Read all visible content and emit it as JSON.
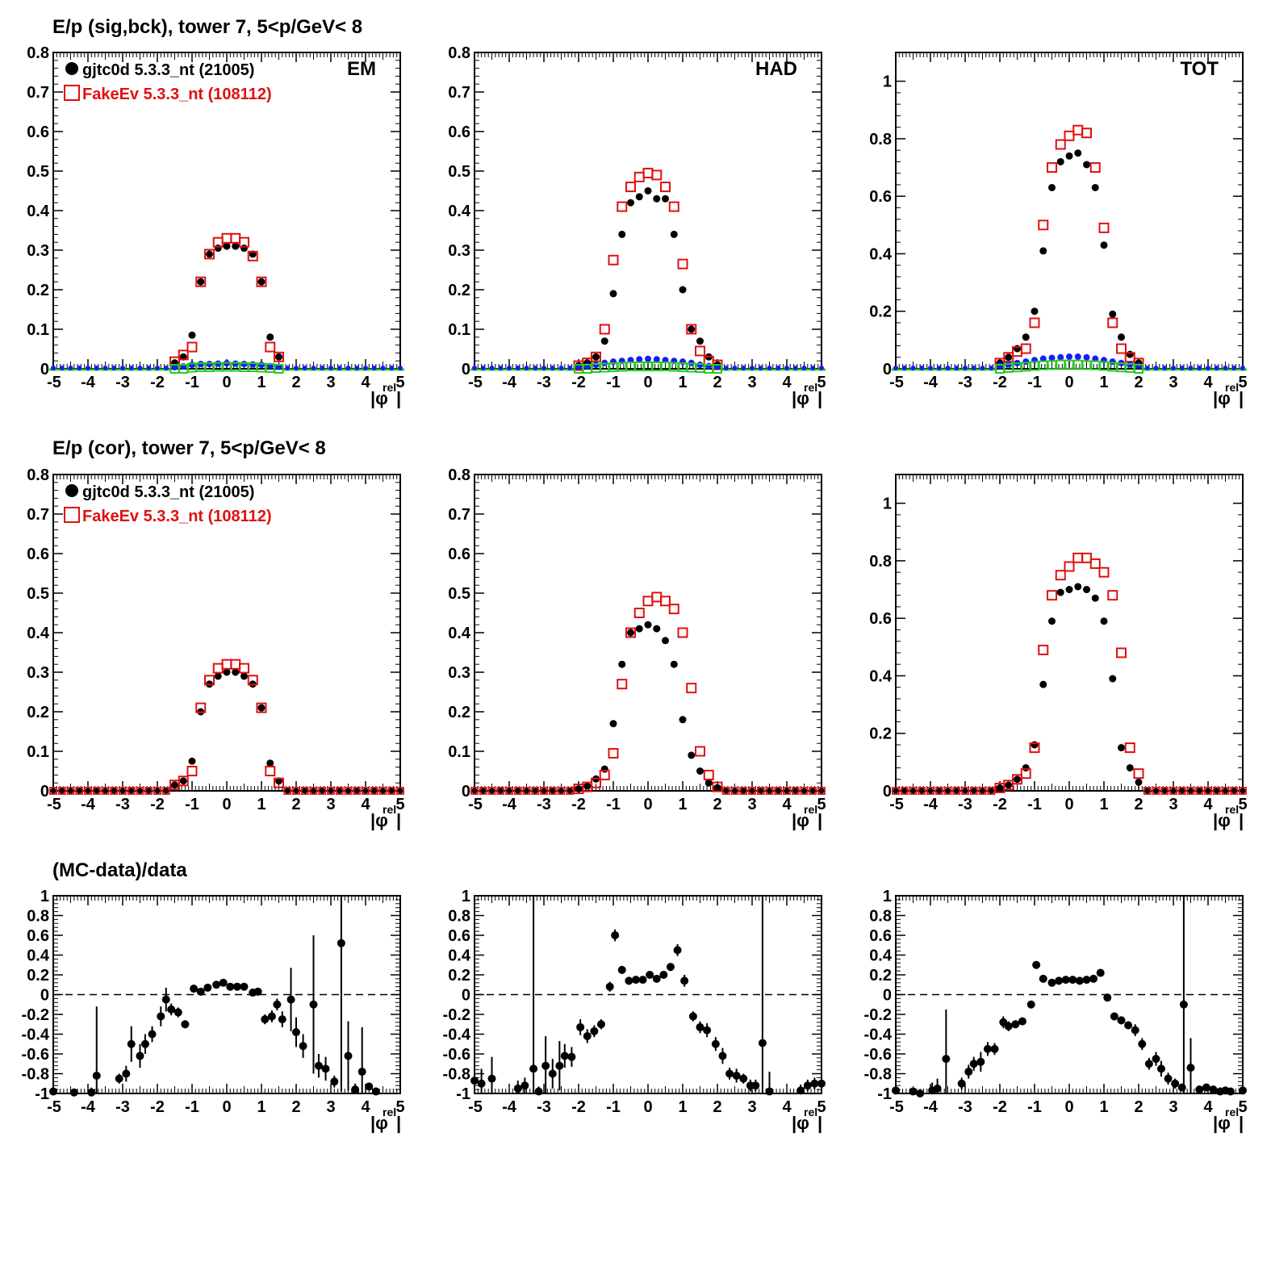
{
  "titles": {
    "row1": "E/p (sig,bck), tower 7,  5<p/GeV< 8",
    "row2": "E/p (cor), tower 7,  5<p/GeV< 8",
    "row3": "(MC-data)/data"
  },
  "legend": {
    "data_label": "gjtc0d 5.3.3_nt (21005)",
    "mc_label": "FakeEv 5.3.3_nt (108112)"
  },
  "colors": {
    "data": "#000000",
    "mc": "#e01010",
    "bck_data": "#1a1aff",
    "bck_mc": "#22cc22"
  },
  "xaxis": {
    "label_main": "|φ",
    "label_sup": "rel",
    "label_end": "|",
    "range": [
      -5,
      5
    ],
    "tick_labels": [
      "-5",
      "-4",
      "-3",
      "-2",
      "-1",
      "0",
      "1",
      "2",
      "3",
      "4",
      "5"
    ]
  },
  "chart_data": [
    {
      "id": "r1c1",
      "type": "scatter",
      "panel_label": "EM",
      "show_legend": true,
      "ylim": [
        0,
        0.8
      ],
      "yticks": [
        0,
        0.1,
        0.2,
        0.3,
        0.4,
        0.5,
        0.6,
        0.7,
        0.8
      ],
      "ytick_labels": [
        "0",
        "0.1",
        "0.2",
        "0.3",
        "0.4",
        "0.5",
        "0.6",
        "0.7",
        "0.8"
      ],
      "x": [
        -1.5,
        -1.25,
        -1.0,
        -0.75,
        -0.5,
        -0.25,
        0,
        0.25,
        0.5,
        0.75,
        1.0,
        1.25,
        1.5
      ],
      "series": [
        {
          "name": "gjtc0d 5.3.3_nt (21005)",
          "marker": "dot",
          "values": [
            0.015,
            0.03,
            0.085,
            0.22,
            0.29,
            0.305,
            0.31,
            0.31,
            0.305,
            0.29,
            0.22,
            0.08,
            0.03
          ]
        },
        {
          "name": "FakeEv 5.3.3_nt (108112)",
          "marker": "square",
          "values": [
            0.018,
            0.035,
            0.055,
            0.22,
            0.29,
            0.32,
            0.33,
            0.33,
            0.32,
            0.285,
            0.22,
            0.055,
            0.03
          ]
        },
        {
          "name": "bck data",
          "marker": "dot-small",
          "values": [
            0.004,
            0.006,
            0.01,
            0.012,
            0.012,
            0.013,
            0.014,
            0.013,
            0.012,
            0.011,
            0.01,
            0.007,
            0.005
          ]
        },
        {
          "name": "bck mc",
          "marker": "square-small",
          "values": [
            0.0,
            0.0,
            0.003,
            0.004,
            0.004,
            0.005,
            0.005,
            0.005,
            0.004,
            0.004,
            0.003,
            0.002,
            0.0
          ]
        }
      ]
    },
    {
      "id": "r1c2",
      "type": "scatter",
      "panel_label": "HAD",
      "show_legend": false,
      "ylim": [
        0,
        0.8
      ],
      "yticks": [
        0,
        0.1,
        0.2,
        0.3,
        0.4,
        0.5,
        0.6,
        0.7,
        0.8
      ],
      "ytick_labels": [
        "0",
        "0.1",
        "0.2",
        "0.3",
        "0.4",
        "0.5",
        "0.6",
        "0.7",
        "0.8"
      ],
      "x": [
        -2.0,
        -1.75,
        -1.5,
        -1.25,
        -1.0,
        -0.75,
        -0.5,
        -0.25,
        0,
        0.25,
        0.5,
        0.75,
        1.0,
        1.25,
        1.5,
        1.75,
        2.0
      ],
      "series": [
        {
          "name": "gjtc0d 5.3.3_nt (21005)",
          "marker": "dot",
          "values": [
            0.008,
            0.015,
            0.03,
            0.07,
            0.19,
            0.34,
            0.42,
            0.435,
            0.45,
            0.43,
            0.43,
            0.34,
            0.2,
            0.1,
            0.07,
            0.03,
            0.01
          ]
        },
        {
          "name": "FakeEv 5.3.3_nt (108112)",
          "marker": "square",
          "values": [
            0.008,
            0.015,
            0.03,
            0.1,
            0.275,
            0.41,
            0.46,
            0.485,
            0.495,
            0.49,
            0.46,
            0.41,
            0.265,
            0.1,
            0.045,
            0.02,
            0.01
          ]
        },
        {
          "name": "bck data",
          "marker": "dot-small",
          "values": [
            0.005,
            0.007,
            0.01,
            0.015,
            0.018,
            0.02,
            0.022,
            0.024,
            0.025,
            0.024,
            0.022,
            0.02,
            0.018,
            0.015,
            0.01,
            0.007,
            0.005
          ]
        },
        {
          "name": "bck mc",
          "marker": "square-small",
          "values": [
            0.0,
            0.0,
            0.002,
            0.003,
            0.004,
            0.005,
            0.006,
            0.006,
            0.006,
            0.006,
            0.006,
            0.005,
            0.004,
            0.003,
            0.002,
            0.0,
            0.0
          ]
        }
      ]
    },
    {
      "id": "r1c3",
      "type": "scatter",
      "panel_label": "TOT",
      "show_legend": false,
      "ylim": [
        0,
        1.1
      ],
      "yticks": [
        0,
        0.2,
        0.4,
        0.6,
        0.8,
        1.0
      ],
      "ytick_labels": [
        "0",
        "0.2",
        "0.4",
        "0.6",
        "0.8",
        "1"
      ],
      "x": [
        -2.0,
        -1.75,
        -1.5,
        -1.25,
        -1.0,
        -0.75,
        -0.5,
        -0.25,
        0,
        0.25,
        0.5,
        0.75,
        1.0,
        1.25,
        1.5,
        1.75,
        2.0
      ],
      "series": [
        {
          "name": "gjtc0d 5.3.3_nt (21005)",
          "marker": "dot",
          "values": [
            0.02,
            0.04,
            0.07,
            0.11,
            0.2,
            0.41,
            0.63,
            0.72,
            0.74,
            0.75,
            0.71,
            0.63,
            0.43,
            0.19,
            0.11,
            0.05,
            0.02
          ]
        },
        {
          "name": "FakeEv 5.3.3_nt (108112)",
          "marker": "square",
          "values": [
            0.02,
            0.04,
            0.06,
            0.07,
            0.16,
            0.5,
            0.7,
            0.78,
            0.81,
            0.83,
            0.82,
            0.7,
            0.49,
            0.16,
            0.07,
            0.04,
            0.02
          ]
        },
        {
          "name": "bck data",
          "marker": "dot-small",
          "values": [
            0.01,
            0.015,
            0.02,
            0.025,
            0.03,
            0.035,
            0.038,
            0.04,
            0.042,
            0.042,
            0.04,
            0.035,
            0.03,
            0.025,
            0.02,
            0.015,
            0.01
          ]
        },
        {
          "name": "bck mc",
          "marker": "square-small",
          "values": [
            0.0,
            0.003,
            0.005,
            0.007,
            0.01,
            0.012,
            0.013,
            0.015,
            0.015,
            0.015,
            0.013,
            0.012,
            0.01,
            0.007,
            0.005,
            0.003,
            0.0
          ]
        }
      ]
    },
    {
      "id": "r2c1",
      "type": "scatter",
      "panel_label": "",
      "show_legend": true,
      "ylim": [
        0,
        0.8
      ],
      "yticks": [
        0,
        0.1,
        0.2,
        0.3,
        0.4,
        0.5,
        0.6,
        0.7,
        0.8
      ],
      "ytick_labels": [
        "0",
        "0.1",
        "0.2",
        "0.3",
        "0.4",
        "0.5",
        "0.6",
        "0.7",
        "0.8"
      ],
      "x": [
        -1.5,
        -1.25,
        -1.0,
        -0.75,
        -0.5,
        -0.25,
        0,
        0.25,
        0.5,
        0.75,
        1.0,
        1.25,
        1.5
      ],
      "series": [
        {
          "name": "gjtc0d 5.3.3_nt (21005)",
          "marker": "dot",
          "values": [
            0.015,
            0.025,
            0.075,
            0.2,
            0.27,
            0.29,
            0.3,
            0.3,
            0.29,
            0.27,
            0.21,
            0.07,
            0.025
          ]
        },
        {
          "name": "FakeEv 5.3.3_nt (108112)",
          "marker": "square",
          "values": [
            0.015,
            0.025,
            0.05,
            0.21,
            0.28,
            0.31,
            0.32,
            0.32,
            0.31,
            0.28,
            0.21,
            0.05,
            0.02
          ]
        }
      ]
    },
    {
      "id": "r2c2",
      "type": "scatter",
      "panel_label": "",
      "show_legend": false,
      "ylim": [
        0,
        0.8
      ],
      "yticks": [
        0,
        0.1,
        0.2,
        0.3,
        0.4,
        0.5,
        0.6,
        0.7,
        0.8
      ],
      "ytick_labels": [
        "0",
        "0.1",
        "0.2",
        "0.3",
        "0.4",
        "0.5",
        "0.6",
        "0.7",
        "0.8"
      ],
      "x": [
        -2.0,
        -1.75,
        -1.5,
        -1.25,
        -1.0,
        -0.75,
        -0.5,
        -0.25,
        0,
        0.25,
        0.5,
        0.75,
        1.0,
        1.25,
        1.5,
        1.75,
        2.0
      ],
      "series": [
        {
          "name": "gjtc0d 5.3.3_nt (21005)",
          "marker": "dot",
          "values": [
            0.005,
            0.012,
            0.03,
            0.055,
            0.17,
            0.32,
            0.4,
            0.41,
            0.42,
            0.41,
            0.38,
            0.32,
            0.18,
            0.09,
            0.05,
            0.02,
            0.008
          ]
        },
        {
          "name": "FakeEv 5.3.3_nt (108112)",
          "marker": "square",
          "values": [
            0.005,
            0.01,
            0.02,
            0.04,
            0.095,
            0.27,
            0.4,
            0.45,
            0.48,
            0.49,
            0.48,
            0.46,
            0.4,
            0.26,
            0.1,
            0.04,
            0.01
          ]
        }
      ]
    },
    {
      "id": "r2c3",
      "type": "scatter",
      "panel_label": "",
      "show_legend": false,
      "ylim": [
        0,
        1.1
      ],
      "yticks": [
        0,
        0.2,
        0.4,
        0.6,
        0.8,
        1.0
      ],
      "ytick_labels": [
        "0",
        "0.2",
        "0.4",
        "0.6",
        "0.8",
        "1"
      ],
      "x": [
        -2.0,
        -1.75,
        -1.5,
        -1.25,
        -1.0,
        -0.75,
        -0.5,
        -0.25,
        0,
        0.25,
        0.5,
        0.75,
        1.0,
        1.25,
        1.5,
        1.75,
        2.0
      ],
      "series": [
        {
          "name": "gjtc0d 5.3.3_nt (21005)",
          "marker": "dot",
          "values": [
            0.01,
            0.02,
            0.04,
            0.08,
            0.16,
            0.37,
            0.59,
            0.69,
            0.7,
            0.71,
            0.7,
            0.67,
            0.59,
            0.39,
            0.15,
            0.08,
            0.03
          ]
        },
        {
          "name": "FakeEv 5.3.3_nt (108112)",
          "marker": "square",
          "values": [
            0.01,
            0.02,
            0.04,
            0.06,
            0.15,
            0.49,
            0.68,
            0.75,
            0.78,
            0.81,
            0.81,
            0.79,
            0.76,
            0.68,
            0.48,
            0.15,
            0.06
          ]
        }
      ]
    },
    {
      "id": "r3c1",
      "type": "scatter",
      "panel_label": "",
      "show_legend": false,
      "ratio": true,
      "ylim": [
        -1,
        1
      ],
      "yticks": [
        -1,
        -0.8,
        -0.6,
        -0.4,
        -0.2,
        0,
        0.2,
        0.4,
        0.6,
        0.8,
        1
      ],
      "ytick_labels": [
        "-1",
        "-0.8",
        "-0.6",
        "-0.4",
        "-0.2",
        "0",
        "0.2",
        "0.4",
        "0.6",
        "0.8",
        "1"
      ],
      "x": [
        -5,
        -4.4,
        -3.9,
        -3.75,
        -3.1,
        -2.9,
        -2.75,
        -2.5,
        -2.35,
        -2.15,
        -1.9,
        -1.75,
        -1.6,
        -1.4,
        -1.2,
        -0.95,
        -0.75,
        -0.55,
        -0.3,
        -0.1,
        0.1,
        0.3,
        0.5,
        0.75,
        0.9,
        1.1,
        1.3,
        1.45,
        1.6,
        1.85,
        2.0,
        2.2,
        2.5,
        2.65,
        2.85,
        3.1,
        3.3,
        3.5,
        3.7,
        3.9,
        4.1,
        4.3
      ],
      "y": [
        -0.98,
        -0.99,
        -0.99,
        -0.82,
        -0.85,
        -0.8,
        -0.5,
        -0.62,
        -0.5,
        -0.4,
        -0.22,
        -0.05,
        -0.15,
        -0.18,
        -0.3,
        0.06,
        0.03,
        0.07,
        0.1,
        0.12,
        0.08,
        0.08,
        0.08,
        0.02,
        0.03,
        -0.25,
        -0.22,
        -0.1,
        -0.25,
        -0.05,
        -0.38,
        -0.52,
        -0.1,
        -0.72,
        -0.75,
        -0.88,
        0.52,
        -0.62,
        -0.96,
        -0.78,
        -0.93,
        -0.98
      ],
      "err": [
        0.02,
        0.02,
        0.05,
        0.7,
        0.05,
        0.08,
        0.18,
        0.12,
        0.1,
        0.08,
        0.1,
        0.12,
        0.06,
        0.05,
        0.04,
        0.04,
        0.03,
        0.03,
        0.03,
        0.03,
        0.03,
        0.03,
        0.03,
        0.03,
        0.03,
        0.05,
        0.06,
        0.06,
        0.08,
        0.32,
        0.15,
        0.12,
        0.7,
        0.12,
        0.12,
        0.06,
        1.5,
        0.35,
        0.06,
        0.45,
        0.04,
        0.04
      ]
    },
    {
      "id": "r3c2",
      "type": "scatter",
      "panel_label": "",
      "show_legend": false,
      "ratio": true,
      "ylim": [
        -1,
        1
      ],
      "yticks": [
        -1,
        -0.8,
        -0.6,
        -0.4,
        -0.2,
        0,
        0.2,
        0.4,
        0.6,
        0.8,
        1
      ],
      "ytick_labels": [
        "-1",
        "-0.8",
        "-0.6",
        "-0.4",
        "-0.2",
        "0",
        "0.2",
        "0.4",
        "0.6",
        "0.8",
        "1"
      ],
      "x": [
        -5,
        -4.8,
        -4.5,
        -3.75,
        -3.55,
        -3.3,
        -3.15,
        -2.95,
        -2.75,
        -2.55,
        -2.4,
        -2.2,
        -1.95,
        -1.75,
        -1.55,
        -1.35,
        -1.1,
        -0.95,
        -0.75,
        -0.55,
        -0.35,
        -0.15,
        0.05,
        0.25,
        0.45,
        0.65,
        0.85,
        1.05,
        1.3,
        1.5,
        1.7,
        1.95,
        2.15,
        2.35,
        2.55,
        2.75,
        2.95,
        3.1,
        3.3,
        3.5,
        4.4,
        4.6,
        4.8,
        5.0
      ],
      "y": [
        -0.87,
        -0.9,
        -0.85,
        -0.95,
        -0.92,
        -0.75,
        -0.98,
        -0.72,
        -0.8,
        -0.72,
        -0.62,
        -0.63,
        -0.33,
        -0.42,
        -0.37,
        -0.3,
        0.08,
        0.6,
        0.25,
        0.14,
        0.15,
        0.15,
        0.2,
        0.16,
        0.2,
        0.28,
        0.45,
        0.14,
        -0.22,
        -0.33,
        -0.36,
        -0.5,
        -0.62,
        -0.8,
        -0.82,
        -0.85,
        -0.92,
        -0.92,
        -0.49,
        -0.98,
        -0.97,
        -0.92,
        -0.9,
        -0.9
      ],
      "err": [
        0.08,
        0.15,
        0.22,
        0.08,
        0.08,
        1.8,
        0.05,
        0.3,
        0.15,
        0.25,
        0.12,
        0.1,
        0.08,
        0.07,
        0.06,
        0.05,
        0.05,
        0.06,
        0.04,
        0.04,
        0.03,
        0.03,
        0.03,
        0.03,
        0.03,
        0.04,
        0.06,
        0.06,
        0.05,
        0.06,
        0.07,
        0.07,
        0.08,
        0.06,
        0.07,
        0.05,
        0.06,
        0.06,
        1.5,
        0.2,
        0.06,
        0.06,
        0.06,
        0.08
      ]
    },
    {
      "id": "r3c3",
      "type": "scatter",
      "panel_label": "",
      "show_legend": false,
      "ratio": true,
      "ylim": [
        -1,
        1
      ],
      "yticks": [
        -1,
        -0.8,
        -0.6,
        -0.4,
        -0.2,
        0,
        0.2,
        0.4,
        0.6,
        0.8,
        1
      ],
      "ytick_labels": [
        "-1",
        "-0.8",
        "-0.6",
        "-0.4",
        "-0.2",
        "0",
        "0.2",
        "0.4",
        "0.6",
        "0.8",
        "1"
      ],
      "x": [
        -5,
        -4.5,
        -4.3,
        -3.95,
        -3.8,
        -3.55,
        -3.1,
        -2.9,
        -2.75,
        -2.55,
        -2.35,
        -2.15,
        -1.9,
        -1.75,
        -1.55,
        -1.35,
        -1.1,
        -0.95,
        -0.75,
        -0.5,
        -0.3,
        -0.1,
        0.1,
        0.3,
        0.5,
        0.7,
        0.9,
        1.1,
        1.3,
        1.5,
        1.7,
        1.9,
        2.1,
        2.3,
        2.5,
        2.65,
        2.85,
        3.05,
        3.25,
        3.3,
        3.5,
        3.75,
        3.95,
        4.15,
        4.35,
        4.5,
        4.65,
        5.0
      ],
      "y": [
        -0.97,
        -0.98,
        -1.0,
        -0.97,
        -0.95,
        -0.65,
        -0.9,
        -0.78,
        -0.7,
        -0.68,
        -0.55,
        -0.55,
        -0.28,
        -0.32,
        -0.3,
        -0.27,
        -0.1,
        0.3,
        0.16,
        0.12,
        0.14,
        0.15,
        0.15,
        0.14,
        0.15,
        0.16,
        0.22,
        -0.03,
        -0.22,
        -0.26,
        -0.31,
        -0.36,
        -0.5,
        -0.7,
        -0.65,
        -0.75,
        -0.85,
        -0.9,
        -0.94,
        -0.1,
        -0.74,
        -0.96,
        -0.94,
        -0.96,
        -0.98,
        -0.97,
        -0.98,
        -0.97
      ],
      "err": [
        0.02,
        0.02,
        0.02,
        0.08,
        0.1,
        0.5,
        0.06,
        0.07,
        0.07,
        0.1,
        0.07,
        0.06,
        0.06,
        0.05,
        0.04,
        0.04,
        0.03,
        0.03,
        0.03,
        0.03,
        0.03,
        0.03,
        0.03,
        0.03,
        0.03,
        0.03,
        0.03,
        0.03,
        0.04,
        0.04,
        0.04,
        0.06,
        0.06,
        0.06,
        0.07,
        0.08,
        0.06,
        0.05,
        0.04,
        1.3,
        0.3,
        0.04,
        0.04,
        0.04,
        0.03,
        0.03,
        0.03,
        0.04
      ]
    }
  ]
}
